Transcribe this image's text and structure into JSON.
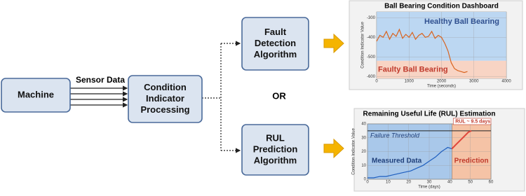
{
  "nodes": [
    {
      "lines": [
        "Machine"
      ]
    },
    {
      "lines": [
        "Condition",
        "Indicator",
        "Processing"
      ]
    },
    {
      "lines": [
        "Fault",
        "Detection",
        "Algorithm"
      ]
    },
    {
      "lines": [
        "RUL",
        "Prediction",
        "Algorithm"
      ]
    }
  ],
  "edge_label": "Sensor Data",
  "or_label": "OR",
  "dashboard": {
    "type": "line",
    "title": "Ball Bearing Condition Dashboard",
    "x_label": "Time (seconds)",
    "y_label": "Condition Indicator Value",
    "xlim": [
      0,
      4000
    ],
    "ylim": [
      -610,
      -270
    ],
    "xticks": [
      0,
      1000,
      2000,
      3000,
      4000
    ],
    "yticks": [
      -300,
      -400,
      -500,
      -600
    ],
    "bands": [
      {
        "label": "Healthy Ball Bearing",
        "from": -520,
        "to": -270,
        "color": "#bcd7f2",
        "text_color": "#2f4f8f"
      },
      {
        "label": "Faulty Ball Bearing",
        "from": -610,
        "to": -520,
        "color": "#f8d4c4",
        "text_color": "#c0392b"
      }
    ],
    "series": [
      {
        "color": "#d9631e",
        "x": [
          0,
          100,
          200,
          300,
          400,
          500,
          600,
          700,
          800,
          900,
          1000,
          1100,
          1200,
          1300,
          1400,
          1500,
          1600,
          1700,
          1800,
          1900,
          2000,
          2100,
          2200,
          2300,
          2400,
          2500,
          2600,
          2700,
          2800
        ],
        "values": [
          -420,
          -390,
          -400,
          -370,
          -410,
          -380,
          -395,
          -360,
          -405,
          -385,
          -400,
          -375,
          -410,
          -390,
          -380,
          -400,
          -395,
          -370,
          -405,
          -390,
          -400,
          -430,
          -470,
          -530,
          -560,
          -570,
          -575,
          -580,
          -575
        ]
      }
    ]
  },
  "rul": {
    "type": "line",
    "title": "Remaining Useful Life (RUL) Estimation",
    "x_label": "Time (days)",
    "y_label": "Condition Indicator Value",
    "xlim": [
      0,
      60
    ],
    "ylim": [
      0,
      40
    ],
    "xticks": [
      0,
      10,
      20,
      30,
      40,
      50,
      60
    ],
    "yticks": [
      0,
      10,
      20,
      30,
      40
    ],
    "regions": [
      {
        "label": "Measured Data",
        "from": 0,
        "to": 41,
        "color": "#a9c8ea",
        "text_color": "#1f3f7a"
      },
      {
        "label": "Prediction",
        "from": 41,
        "to": 60,
        "color": "#f5c3a6",
        "text_color": "#c0392b"
      }
    ],
    "threshold": {
      "label": "Failure Threshold",
      "value": 35
    },
    "rul_label": "RUL ~ 9.5 days",
    "series": [
      {
        "color": "#1f5fbf",
        "x": [
          0,
          3,
          6,
          9,
          12,
          15,
          18,
          21,
          24,
          27,
          30,
          33,
          36,
          39,
          41
        ],
        "values": [
          1,
          1,
          2,
          2,
          3,
          4,
          5,
          6,
          8,
          10,
          13,
          16,
          20,
          23,
          22
        ]
      },
      {
        "color": "#e0453a",
        "x": [
          41,
          43,
          45,
          47,
          49,
          50.5
        ],
        "values": [
          22,
          25,
          28,
          31,
          34,
          35
        ]
      }
    ]
  }
}
